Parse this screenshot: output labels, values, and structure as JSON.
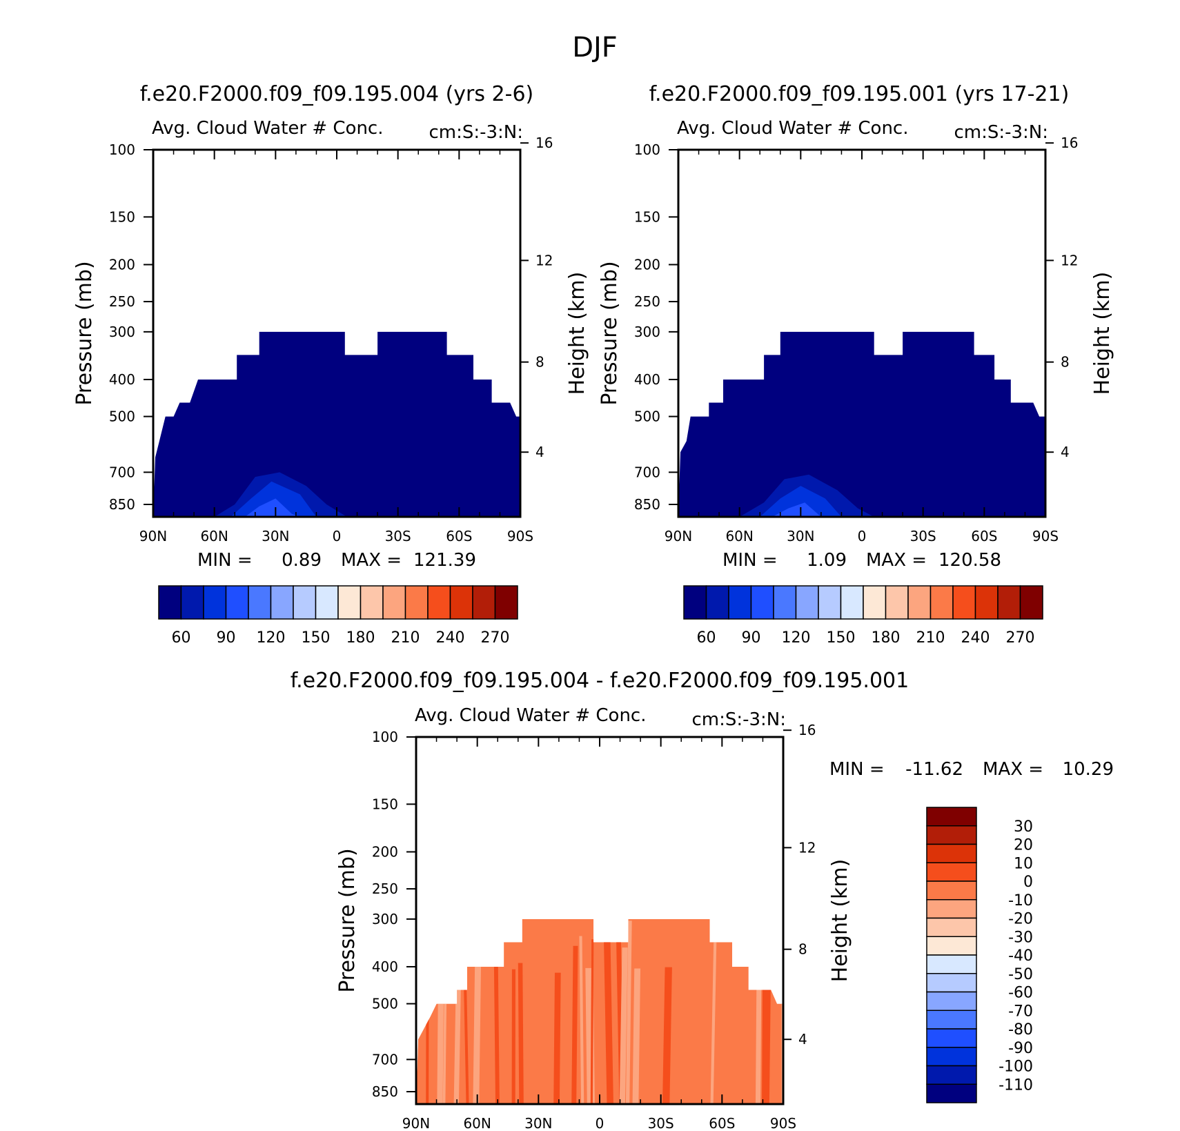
{
  "figure": {
    "title": "DJF"
  },
  "colors": {
    "abs_scale": [
      "#00007f",
      "#0019ad",
      "#0033dc",
      "#1f4fff",
      "#4a78ff",
      "#88a6ff",
      "#b6cbff",
      "#d8e8ff",
      "#fde8d6",
      "#fdc6aa",
      "#fca57f",
      "#fb7a48",
      "#f54e1c",
      "#dc3308",
      "#b21e08",
      "#7f0000"
    ],
    "diff_scale": [
      "#00007f",
      "#0019ad",
      "#0033dc",
      "#1f4fff",
      "#4a78ff",
      "#88a6ff",
      "#b6cbff",
      "#d8e8ff",
      "#fde8d6",
      "#fdc6aa",
      "#fca57f",
      "#fb7a48",
      "#f54e1c",
      "#dc3308",
      "#b21e08",
      "#7f0000"
    ]
  },
  "chart_data": [
    {
      "type": "heatmap",
      "title": "f.e20.F2000.f09_f09.195.004 (yrs 2-6)",
      "subtitle_left": "Avg. Cloud Water # Conc.",
      "subtitle_right": "cm:S:-3:N:",
      "xlabel": "",
      "ylabel": "Pressure (mb)",
      "y2label": "Height (km)",
      "x_ticks": [
        "90N",
        "60N",
        "30N",
        "0",
        "30S",
        "60S",
        "90S"
      ],
      "y_ticks": [
        "100",
        "150",
        "200",
        "250",
        "300",
        "400",
        "500",
        "700",
        "850"
      ],
      "y2_ticks": [
        "16",
        "12",
        "8",
        "4"
      ],
      "ylim": [
        1000,
        100
      ],
      "y_scale": "log",
      "xlim": [
        90,
        -90
      ],
      "min_label": "MIN =",
      "min_value": "0.89",
      "max_label": "MAX =",
      "max_value": "121.39",
      "colorbar": {
        "orientation": "horizontal",
        "labels": [
          "60",
          "90",
          "120",
          "150",
          "180",
          "210",
          "240",
          "270"
        ],
        "levels": [
          60,
          75,
          90,
          105,
          120,
          135,
          150,
          165,
          180,
          195,
          210,
          225,
          240,
          255,
          270
        ]
      },
      "field_upper_boundary": [
        {
          "lat": 90,
          "p": 1000
        },
        {
          "lat": 89,
          "p": 640
        },
        {
          "lat": 87,
          "p": 580
        },
        {
          "lat": 84,
          "p": 500
        },
        {
          "lat": 80,
          "p": 500
        },
        {
          "lat": 77,
          "p": 460
        },
        {
          "lat": 72,
          "p": 460
        },
        {
          "lat": 68,
          "p": 400
        },
        {
          "lat": 49,
          "p": 400
        },
        {
          "lat": 49,
          "p": 345
        },
        {
          "lat": 38,
          "p": 345
        },
        {
          "lat": 38,
          "p": 300
        },
        {
          "lat": -4,
          "p": 300
        },
        {
          "lat": -4,
          "p": 345
        },
        {
          "lat": -20,
          "p": 345
        },
        {
          "lat": -20,
          "p": 300
        },
        {
          "lat": -54,
          "p": 300
        },
        {
          "lat": -54,
          "p": 345
        },
        {
          "lat": -67,
          "p": 345
        },
        {
          "lat": -67,
          "p": 400
        },
        {
          "lat": -76,
          "p": 400
        },
        {
          "lat": -76,
          "p": 460
        },
        {
          "lat": -85,
          "p": 460
        },
        {
          "lat": -88,
          "p": 500
        },
        {
          "lat": -90,
          "p": 500
        }
      ],
      "enhanced_region": [
        {
          "level": 75,
          "points": [
            {
              "lat": 60,
              "p": 1000
            },
            {
              "lat": 50,
              "p": 850
            },
            {
              "lat": 40,
              "p": 720
            },
            {
              "lat": 28,
              "p": 700
            },
            {
              "lat": 15,
              "p": 760
            },
            {
              "lat": 5,
              "p": 850
            },
            {
              "lat": -5,
              "p": 1000
            }
          ]
        },
        {
          "lat_center": 35,
          "level": 90,
          "points": [
            {
              "lat": 52,
              "p": 1000
            },
            {
              "lat": 42,
              "p": 820
            },
            {
              "lat": 32,
              "p": 740
            },
            {
              "lat": 18,
              "p": 800
            },
            {
              "lat": 10,
              "p": 1000
            }
          ]
        },
        {
          "level": 105,
          "points": [
            {
              "lat": 45,
              "p": 1000
            },
            {
              "lat": 38,
              "p": 860
            },
            {
              "lat": 30,
              "p": 820
            },
            {
              "lat": 22,
              "p": 900
            },
            {
              "lat": 18,
              "p": 1000
            }
          ]
        }
      ]
    },
    {
      "type": "heatmap",
      "title": "f.e20.F2000.f09_f09.195.001 (yrs 17-21)",
      "subtitle_left": "Avg. Cloud Water # Conc.",
      "subtitle_right": "cm:S:-3:N:",
      "xlabel": "",
      "ylabel": "Pressure (mb)",
      "y2label": "Height (km)",
      "x_ticks": [
        "90N",
        "60N",
        "30N",
        "0",
        "30S",
        "60S",
        "90S"
      ],
      "y_ticks": [
        "100",
        "150",
        "200",
        "250",
        "300",
        "400",
        "500",
        "700",
        "850"
      ],
      "y2_ticks": [
        "16",
        "12",
        "8",
        "4"
      ],
      "ylim": [
        1000,
        100
      ],
      "y_scale": "log",
      "xlim": [
        90,
        -90
      ],
      "min_label": "MIN =",
      "min_value": "1.09",
      "max_label": "MAX =",
      "max_value": "120.58",
      "colorbar": {
        "orientation": "horizontal",
        "labels": [
          "60",
          "90",
          "120",
          "150",
          "180",
          "210",
          "240",
          "270"
        ],
        "levels": [
          60,
          75,
          90,
          105,
          120,
          135,
          150,
          165,
          180,
          195,
          210,
          225,
          240,
          255,
          270
        ]
      },
      "field_upper_boundary": [
        {
          "lat": 90,
          "p": 1000
        },
        {
          "lat": 89,
          "p": 620
        },
        {
          "lat": 86,
          "p": 580
        },
        {
          "lat": 84,
          "p": 500
        },
        {
          "lat": 75,
          "p": 500
        },
        {
          "lat": 75,
          "p": 460
        },
        {
          "lat": 68,
          "p": 460
        },
        {
          "lat": 68,
          "p": 400
        },
        {
          "lat": 48,
          "p": 400
        },
        {
          "lat": 48,
          "p": 345
        },
        {
          "lat": 40,
          "p": 345
        },
        {
          "lat": 40,
          "p": 300
        },
        {
          "lat": -6,
          "p": 300
        },
        {
          "lat": -6,
          "p": 345
        },
        {
          "lat": -20,
          "p": 345
        },
        {
          "lat": -20,
          "p": 300
        },
        {
          "lat": -55,
          "p": 300
        },
        {
          "lat": -55,
          "p": 345
        },
        {
          "lat": -65,
          "p": 345
        },
        {
          "lat": -65,
          "p": 400
        },
        {
          "lat": -73,
          "p": 400
        },
        {
          "lat": -73,
          "p": 460
        },
        {
          "lat": -84,
          "p": 460
        },
        {
          "lat": -87,
          "p": 500
        },
        {
          "lat": -90,
          "p": 500
        }
      ],
      "enhanced_region": [
        {
          "level": 75,
          "points": [
            {
              "lat": 60,
              "p": 1000
            },
            {
              "lat": 48,
              "p": 840
            },
            {
              "lat": 38,
              "p": 730
            },
            {
              "lat": 26,
              "p": 710
            },
            {
              "lat": 12,
              "p": 780
            },
            {
              "lat": 2,
              "p": 870
            },
            {
              "lat": -6,
              "p": 1000
            }
          ]
        },
        {
          "level": 90,
          "points": [
            {
              "lat": 50,
              "p": 1000
            },
            {
              "lat": 40,
              "p": 820
            },
            {
              "lat": 30,
              "p": 760
            },
            {
              "lat": 18,
              "p": 820
            },
            {
              "lat": 10,
              "p": 1000
            }
          ]
        },
        {
          "level": 105,
          "points": [
            {
              "lat": 44,
              "p": 1000
            },
            {
              "lat": 36,
              "p": 870
            },
            {
              "lat": 28,
              "p": 840
            },
            {
              "lat": 20,
              "p": 920
            },
            {
              "lat": 16,
              "p": 1000
            }
          ]
        }
      ]
    },
    {
      "type": "heatmap",
      "title": "f.e20.F2000.f09_f09.195.004 - f.e20.F2000.f09_f09.195.001",
      "subtitle_left": "Avg. Cloud Water # Conc.",
      "subtitle_right": "cm:S:-3:N:",
      "xlabel": "",
      "ylabel": "Pressure (mb)",
      "y2label": "Height (km)",
      "x_ticks": [
        "90N",
        "60N",
        "30N",
        "0",
        "30S",
        "60S",
        "90S"
      ],
      "y_ticks": [
        "100",
        "150",
        "200",
        "250",
        "300",
        "400",
        "500",
        "700",
        "850"
      ],
      "y2_ticks": [
        "16",
        "12",
        "8",
        "4"
      ],
      "ylim": [
        1000,
        100
      ],
      "y_scale": "log",
      "xlim": [
        90,
        -90
      ],
      "min_label": "MIN =",
      "min_value": "-11.62",
      "max_label": "MAX =",
      "max_value": "10.29",
      "colorbar": {
        "orientation": "vertical",
        "labels": [
          "30",
          "20",
          "10",
          "0",
          "-10",
          "-20",
          "-30",
          "-40",
          "-50",
          "-60",
          "-70",
          "-80",
          "-90",
          "-100",
          "-110"
        ],
        "levels": [
          30,
          20,
          10,
          0,
          -10,
          -20,
          -30,
          -40,
          -50,
          -60,
          -70,
          -80,
          -90,
          -100,
          -110
        ]
      },
      "field_upper_boundary": [
        {
          "lat": 90,
          "p": 1000
        },
        {
          "lat": 89,
          "p": 620
        },
        {
          "lat": 83,
          "p": 540
        },
        {
          "lat": 80,
          "p": 500
        },
        {
          "lat": 70,
          "p": 500
        },
        {
          "lat": 70,
          "p": 460
        },
        {
          "lat": 65,
          "p": 460
        },
        {
          "lat": 65,
          "p": 400
        },
        {
          "lat": 47,
          "p": 400
        },
        {
          "lat": 47,
          "p": 345
        },
        {
          "lat": 38,
          "p": 345
        },
        {
          "lat": 38,
          "p": 300
        },
        {
          "lat": 3,
          "p": 300
        },
        {
          "lat": 3,
          "p": 345
        },
        {
          "lat": -14,
          "p": 345
        },
        {
          "lat": -14,
          "p": 300
        },
        {
          "lat": -54,
          "p": 300
        },
        {
          "lat": -54,
          "p": 345
        },
        {
          "lat": -65,
          "p": 345
        },
        {
          "lat": -65,
          "p": 400
        },
        {
          "lat": -73,
          "p": 400
        },
        {
          "lat": -73,
          "p": 460
        },
        {
          "lat": -84,
          "p": 460
        },
        {
          "lat": -87,
          "p": 500
        },
        {
          "lat": -90,
          "p": 500
        }
      ]
    }
  ]
}
